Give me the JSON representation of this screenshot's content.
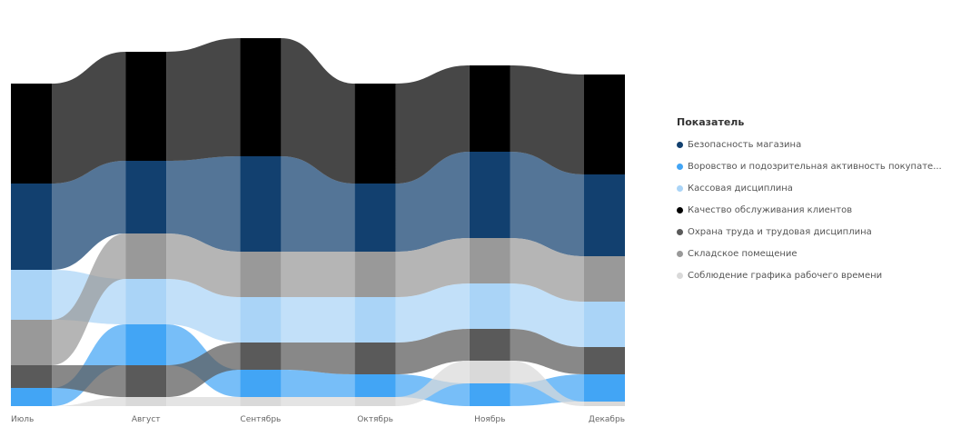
{
  "chart_data": {
    "type": "ribbon",
    "categories": [
      "Июль",
      "Август",
      "Сентябрь",
      "Октябрь",
      "Ноябрь",
      "Декабрь"
    ],
    "legend_title": "Показатель",
    "legend_position": "right",
    "series": [
      {
        "name": "Безопасность магазина",
        "color": "#12406f",
        "values": [
          19,
          16,
          21,
          15,
          19,
          18
        ]
      },
      {
        "name": "Воровство и подозрительная активность покупате...",
        "color": "#42a5f5",
        "values": [
          4,
          9,
          6,
          5,
          5,
          6
        ]
      },
      {
        "name": "Кассовая дисциплина",
        "color": "#aad4f7",
        "values": [
          11,
          10,
          10,
          10,
          10,
          10
        ]
      },
      {
        "name": "Качество обслуживания клиентов",
        "color": "#000000",
        "values": [
          22,
          24,
          26,
          22,
          19,
          22
        ]
      },
      {
        "name": "Охрана труда и трудовая дисциплина",
        "color": "#5a5a5a",
        "values": [
          5,
          7,
          6,
          7,
          7,
          6
        ]
      },
      {
        "name": "Складское помещение",
        "color": "#999999",
        "values": [
          10,
          10,
          10,
          10,
          10,
          10
        ]
      },
      {
        "name": "Соблюдение графика рабочего времени",
        "color": "#d9d9d9",
        "values": [
          0,
          2,
          2,
          2,
          5,
          1
        ]
      }
    ]
  }
}
